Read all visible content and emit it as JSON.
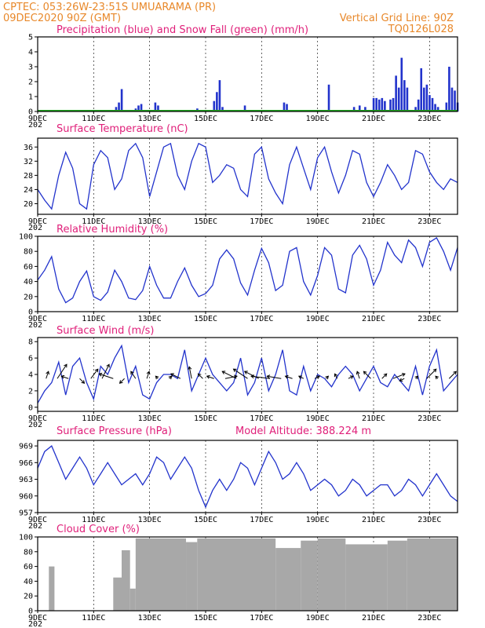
{
  "header": {
    "left_line1": "CPTEC:  053:26W-23:51S  UMUARAMA (PR)",
    "left_line2": "09DEC2020 90Z (GMT)",
    "right_line1": "Vertical Grid Line: 90Z",
    "right_line2": "TQ0126L028"
  },
  "colors": {
    "line": "#2233cc",
    "snow": "#22aa22",
    "cloud": "#a8a8a8",
    "title": "#e0207a",
    "header": "#e8882a"
  },
  "x_axis": {
    "labels": [
      "9DEC",
      "11DEC",
      "13DEC",
      "15DEC",
      "17DEC",
      "19DEC",
      "21DEC",
      "23DEC"
    ],
    "days": [
      9,
      11,
      13,
      15,
      17,
      19,
      21,
      23
    ],
    "year_stub": "202",
    "range": [
      9,
      24
    ]
  },
  "chart_data": [
    {
      "id": "precip",
      "type": "bar",
      "title": "Precipitation (blue) and Snow Fall (green) (mm/h)",
      "ylim": [
        0,
        5
      ],
      "yticks": [
        0,
        1,
        2,
        3,
        4,
        5
      ],
      "series": [
        {
          "name": "Precipitation",
          "x": [
            11.8,
            11.9,
            12.0,
            12.5,
            12.6,
            12.7,
            13.2,
            13.3,
            14.7,
            15.3,
            15.4,
            15.5,
            15.6,
            16.4,
            17.8,
            17.9,
            19.2,
            19.4,
            20.3,
            20.5,
            20.7,
            21.0,
            21.1,
            21.2,
            21.3,
            21.4,
            21.6,
            21.7,
            21.8,
            21.9,
            22.0,
            22.1,
            22.2,
            22.5,
            22.6,
            22.7,
            22.8,
            22.9,
            23.0,
            23.1,
            23.2,
            23.3,
            23.6,
            23.7,
            23.8,
            23.9,
            24.0
          ],
          "values": [
            0.3,
            0.6,
            1.5,
            0.2,
            0.4,
            0.5,
            0.6,
            0.4,
            0.2,
            0.7,
            1.3,
            2.1,
            0.3,
            0.4,
            0.6,
            0.5,
            0.1,
            1.8,
            0.3,
            0.4,
            0.3,
            0.9,
            0.9,
            0.8,
            0.9,
            0.7,
            0.8,
            0.9,
            2.4,
            1.6,
            3.6,
            2.1,
            1.6,
            0.3,
            0.8,
            2.9,
            1.6,
            1.8,
            1.1,
            0.9,
            0.5,
            0.3,
            0.6,
            3.0,
            1.6,
            1.4,
            0.6
          ]
        },
        {
          "name": "Snow Fall",
          "x": [
            9,
            24
          ],
          "values": [
            0,
            0
          ]
        }
      ]
    },
    {
      "id": "temp",
      "type": "line",
      "title": "Surface Temperature (nC)",
      "ylim": [
        17,
        38.5
      ],
      "yticks": [
        20,
        24,
        28,
        32,
        36
      ],
      "x": [
        9.0,
        9.25,
        9.5,
        9.75,
        10.0,
        10.25,
        10.5,
        10.75,
        11.0,
        11.25,
        11.5,
        11.75,
        12.0,
        12.25,
        12.5,
        12.75,
        13.0,
        13.25,
        13.5,
        13.75,
        14.0,
        14.25,
        14.5,
        14.75,
        15.0,
        15.25,
        15.5,
        15.75,
        16.0,
        16.25,
        16.5,
        16.75,
        17.0,
        17.25,
        17.5,
        17.75,
        18.0,
        18.25,
        18.5,
        18.75,
        19.0,
        19.25,
        19.5,
        19.75,
        20.0,
        20.25,
        20.5,
        20.75,
        21.0,
        21.25,
        21.5,
        21.75,
        22.0,
        22.25,
        22.5,
        22.75,
        23.0,
        23.25,
        23.5,
        23.75,
        24.0
      ],
      "values": [
        24,
        21,
        18.5,
        28,
        34.5,
        30,
        20,
        18.5,
        31,
        35,
        33,
        24,
        27,
        35,
        37,
        33,
        22,
        29,
        36,
        37,
        28,
        24,
        32,
        37,
        36,
        26,
        28,
        31,
        30,
        24,
        22,
        34,
        36,
        27,
        23,
        20,
        31,
        36,
        30,
        24,
        33,
        36,
        29,
        23,
        28,
        35,
        34,
        26,
        22,
        26,
        31,
        28,
        24,
        26,
        35,
        34,
        29,
        26,
        24,
        27,
        26
      ]
    },
    {
      "id": "rh",
      "type": "line",
      "title": "Relative Humidity (%)",
      "ylim": [
        0,
        100
      ],
      "yticks": [
        0,
        20,
        40,
        60,
        80,
        100
      ],
      "x": [
        9.0,
        9.25,
        9.5,
        9.75,
        10.0,
        10.25,
        10.5,
        10.75,
        11.0,
        11.25,
        11.5,
        11.75,
        12.0,
        12.25,
        12.5,
        12.75,
        13.0,
        13.25,
        13.5,
        13.75,
        14.0,
        14.25,
        14.5,
        14.75,
        15.0,
        15.25,
        15.5,
        15.75,
        16.0,
        16.25,
        16.5,
        16.75,
        17.0,
        17.25,
        17.5,
        17.75,
        18.0,
        18.25,
        18.5,
        18.75,
        19.0,
        19.25,
        19.5,
        19.75,
        20.0,
        20.25,
        20.5,
        20.75,
        21.0,
        21.25,
        21.5,
        21.75,
        22.0,
        22.25,
        22.5,
        22.75,
        23.0,
        23.25,
        23.5,
        23.75,
        24.0
      ],
      "values": [
        42,
        55,
        73,
        30,
        12,
        18,
        40,
        54,
        20,
        15,
        26,
        55,
        40,
        18,
        16,
        28,
        60,
        35,
        18,
        18,
        40,
        58,
        35,
        20,
        24,
        35,
        70,
        82,
        70,
        38,
        22,
        55,
        84,
        65,
        28,
        35,
        80,
        85,
        40,
        22,
        48,
        85,
        75,
        30,
        25,
        75,
        88,
        70,
        35,
        55,
        92,
        75,
        65,
        95,
        85,
        60,
        92,
        98,
        80,
        55,
        85
      ]
    },
    {
      "id": "wind",
      "type": "line",
      "title": "Surface Wind (m/s)",
      "ylim": [
        -0.5,
        8.5
      ],
      "yticks": [
        0,
        2,
        4,
        6,
        8
      ],
      "x": [
        9.0,
        9.25,
        9.5,
        9.75,
        10.0,
        10.25,
        10.5,
        10.75,
        11.0,
        11.25,
        11.5,
        11.75,
        12.0,
        12.25,
        12.5,
        12.75,
        13.0,
        13.25,
        13.5,
        13.75,
        14.0,
        14.25,
        14.5,
        14.75,
        15.0,
        15.25,
        15.5,
        15.75,
        16.0,
        16.25,
        16.5,
        16.75,
        17.0,
        17.25,
        17.5,
        17.75,
        18.0,
        18.25,
        18.5,
        18.75,
        19.0,
        19.25,
        19.5,
        19.75,
        20.0,
        20.25,
        20.5,
        20.75,
        21.0,
        21.25,
        21.5,
        21.75,
        22.0,
        22.25,
        22.5,
        22.75,
        23.0,
        23.25,
        23.5,
        23.75,
        24.0
      ],
      "values": [
        0.5,
        2,
        3,
        5.5,
        1.5,
        5,
        6,
        3,
        1,
        5,
        4,
        6,
        7.5,
        3,
        5,
        1.5,
        1,
        3,
        4,
        4,
        3.5,
        7,
        2,
        4,
        6,
        4,
        3,
        2,
        3,
        6,
        1.5,
        3,
        6,
        2,
        4,
        7,
        2,
        1.5,
        5,
        2,
        4,
        3.5,
        2.5,
        4,
        5,
        4,
        2,
        3.5,
        5,
        3,
        2.5,
        4,
        3,
        2,
        5,
        1.5,
        5,
        7,
        2,
        3,
        4
      ],
      "vectors": {
        "x": [
          9.3,
          9.7,
          10.1,
          10.5,
          10.9,
          11.3,
          11.7,
          12.1,
          12.5,
          12.9,
          13.3,
          13.7,
          14.1,
          14.5,
          14.9,
          15.3,
          15.7,
          16.1,
          16.5,
          16.9,
          17.3,
          17.7,
          18.1,
          18.5,
          18.9,
          19.3,
          19.7,
          20.1,
          20.5,
          20.9,
          21.3,
          21.7,
          22.1,
          22.5,
          22.9,
          23.3,
          23.7
        ],
        "u": [
          0.5,
          2,
          -1.5,
          1,
          1.5,
          1.5,
          -3,
          -1,
          -1,
          0.5,
          -0.5,
          0.5,
          -2,
          -0.5,
          -1,
          -1.5,
          2.5,
          -3,
          -3,
          -3,
          -4,
          -3,
          -1.5,
          -1,
          1,
          0.5,
          -0.5,
          1,
          -0.5,
          -1.5,
          1,
          2.5,
          -1,
          0.5,
          2,
          -0.5,
          1.5
        ],
        "v": [
          1.5,
          3,
          0.5,
          -1,
          2,
          3,
          1,
          -1,
          1.5,
          1.5,
          0.5,
          0.5,
          1,
          2.5,
          1,
          0.5,
          0.5,
          1.5,
          2,
          1.5,
          0.5,
          0.5,
          0.5,
          0.5,
          0.5,
          0.5,
          1,
          0.5,
          1.5,
          1.5,
          1,
          1,
          -0.5,
          0.5,
          2,
          0.5,
          1.5
        ]
      }
    },
    {
      "id": "pres",
      "type": "line",
      "title": "Surface Pressure (hPa)",
      "subtitle": "Model Altitude: 388.224 m",
      "ylim": [
        957,
        970
      ],
      "yticks": [
        957,
        960,
        963,
        966,
        969
      ],
      "x": [
        9.0,
        9.25,
        9.5,
        9.75,
        10.0,
        10.25,
        10.5,
        10.75,
        11.0,
        11.25,
        11.5,
        11.75,
        12.0,
        12.25,
        12.5,
        12.75,
        13.0,
        13.25,
        13.5,
        13.75,
        14.0,
        14.25,
        14.5,
        14.75,
        15.0,
        15.25,
        15.5,
        15.75,
        16.0,
        16.25,
        16.5,
        16.75,
        17.0,
        17.25,
        17.5,
        17.75,
        18.0,
        18.25,
        18.5,
        18.75,
        19.0,
        19.25,
        19.5,
        19.75,
        20.0,
        20.25,
        20.5,
        20.75,
        21.0,
        21.25,
        21.5,
        21.75,
        22.0,
        22.25,
        22.5,
        22.75,
        23.0,
        23.25,
        23.5,
        23.75,
        24.0
      ],
      "values": [
        965,
        968,
        969,
        966,
        963,
        965,
        967,
        965,
        962,
        964,
        966,
        964,
        962,
        963,
        964,
        962,
        964,
        967,
        966,
        963,
        965,
        967,
        965,
        961,
        958,
        961,
        963,
        961,
        963,
        966,
        965,
        962,
        965,
        968,
        966,
        963,
        964,
        966,
        964,
        961,
        962,
        963,
        962,
        960,
        961,
        963,
        962,
        960,
        961,
        962,
        962,
        960,
        961,
        963,
        962,
        960,
        962,
        964,
        962,
        960,
        959
      ]
    },
    {
      "id": "cloud",
      "type": "bar",
      "title": "Cloud Cover (%)",
      "ylim": [
        0,
        100
      ],
      "yticks": [
        0,
        20,
        40,
        60,
        80,
        100
      ],
      "segments": [
        {
          "from": 9.0,
          "to": 9.4,
          "value": 0
        },
        {
          "from": 9.4,
          "to": 9.6,
          "value": 60
        },
        {
          "from": 9.6,
          "to": 11.7,
          "value": 0
        },
        {
          "from": 11.7,
          "to": 12.0,
          "value": 45
        },
        {
          "from": 12.0,
          "to": 12.3,
          "value": 82
        },
        {
          "from": 12.3,
          "to": 12.5,
          "value": 30
        },
        {
          "from": 12.5,
          "to": 14.3,
          "value": 98
        },
        {
          "from": 14.3,
          "to": 14.7,
          "value": 93
        },
        {
          "from": 14.7,
          "to": 17.5,
          "value": 98
        },
        {
          "from": 17.5,
          "to": 18.4,
          "value": 85
        },
        {
          "from": 18.4,
          "to": 19.0,
          "value": 95
        },
        {
          "from": 19.0,
          "to": 20.0,
          "value": 98
        },
        {
          "from": 20.0,
          "to": 21.5,
          "value": 90
        },
        {
          "from": 21.5,
          "to": 22.2,
          "value": 95
        },
        {
          "from": 22.2,
          "to": 24.0,
          "value": 98
        }
      ]
    }
  ]
}
